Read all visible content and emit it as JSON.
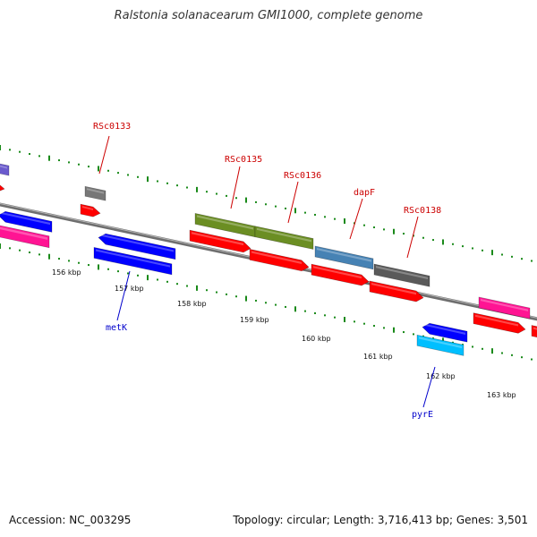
{
  "title": "Ralstonia solanacearum GMI1000, complete genome",
  "footer": {
    "accession": "Accession: NC_003295",
    "summary": "Topology: circular; Length: 3,716,413 bp; Genes: 3,501"
  },
  "colors": {
    "backbone": "#808080",
    "forward_label": "#cc0000",
    "reverse_label": "#0000cc",
    "tick": "#1a8a1a"
  },
  "scale": {
    "ticks": [
      "156 kbp",
      "157 kbp",
      "158 kbp",
      "159 kbp",
      "160 kbp",
      "161 kbp",
      "162 kbp",
      "163 kbp"
    ]
  },
  "labels": {
    "forward": [
      {
        "name": "RSc0133",
        "color": "#cc0000"
      },
      {
        "name": "RSc0135",
        "color": "#cc0000"
      },
      {
        "name": "RSc0136",
        "color": "#cc0000"
      },
      {
        "name": "dapF",
        "color": "#cc0000"
      },
      {
        "name": "RSc0138",
        "color": "#cc0000"
      }
    ],
    "reverse": [
      {
        "name": "metK",
        "color": "#0000cc"
      },
      {
        "name": "pyrE",
        "color": "#0000cc"
      }
    ]
  }
}
